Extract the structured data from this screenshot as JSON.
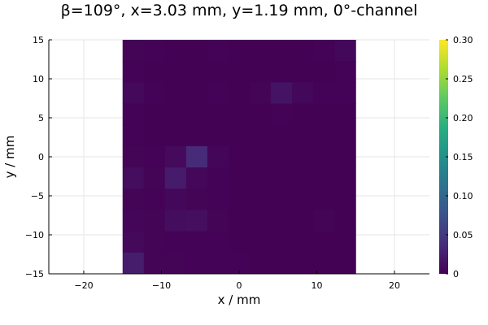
{
  "chart_data": {
    "type": "heatmap",
    "title": "β=109°, x=3.03 mm, y=1.19 mm, 0°-channel",
    "xlabel": "x / mm",
    "ylabel": "y / mm",
    "xlim": [
      -24.5,
      24.5
    ],
    "ylim": [
      -15,
      15
    ],
    "xticks": [
      -20,
      -10,
      0,
      10,
      20
    ],
    "xtick_labels": [
      "−20",
      "−10",
      "0",
      "10",
      "20"
    ],
    "yticks": [
      -15,
      -10,
      -5,
      0,
      5,
      10,
      15
    ],
    "ytick_labels": [
      "−15",
      "−10",
      "−5",
      "0",
      "5",
      "10",
      "15"
    ],
    "grid": true,
    "colormap": "viridis",
    "colorbar": {
      "range": [
        0,
        0.3
      ],
      "ticks": [
        0,
        0.05,
        0.1,
        0.15,
        0.2,
        0.25,
        0.3
      ],
      "tick_labels": [
        "0",
        "0.05",
        "0.10",
        "0.15",
        "0.20",
        "0.25",
        "0.30"
      ]
    },
    "x_range": [
      -15,
      15
    ],
    "y_range": [
      -15,
      15
    ],
    "grid_size": [
      11,
      11
    ],
    "values": [
      [
        0.003,
        0.002,
        0.001,
        0.001,
        0.002,
        0.001,
        0.001,
        0.001,
        0.001,
        0.002,
        0.006
      ],
      [
        0.002,
        0.001,
        0.001,
        0.001,
        0.001,
        0.001,
        0.001,
        0.001,
        0.001,
        0.001,
        0.002
      ],
      [
        0.007,
        0.002,
        0.001,
        0.001,
        0.002,
        0.001,
        0.003,
        0.015,
        0.006,
        0.002,
        0.002
      ],
      [
        0.002,
        0.001,
        0.001,
        0.001,
        0.001,
        0.001,
        0.001,
        0.002,
        0.001,
        0.001,
        0.001
      ],
      [
        0.002,
        0.001,
        0.001,
        0.001,
        0.001,
        0.001,
        0.001,
        0.001,
        0.001,
        0.001,
        0.001
      ],
      [
        0.003,
        0.002,
        0.008,
        0.035,
        0.004,
        0.001,
        0.001,
        0.001,
        0.001,
        0.001,
        0.001
      ],
      [
        0.01,
        0.003,
        0.022,
        0.005,
        0.002,
        0.001,
        0.001,
        0.001,
        0.001,
        0.001,
        0.001
      ],
      [
        0.003,
        0.002,
        0.006,
        0.003,
        0.002,
        0.001,
        0.001,
        0.001,
        0.001,
        0.001,
        0.001
      ],
      [
        0.004,
        0.003,
        0.01,
        0.011,
        0.003,
        0.001,
        0.001,
        0.001,
        0.001,
        0.003,
        0.001
      ],
      [
        0.007,
        0.003,
        0.002,
        0.002,
        0.002,
        0.001,
        0.001,
        0.001,
        0.001,
        0.001,
        0.001
      ],
      [
        0.024,
        0.003,
        0.003,
        0.002,
        0.002,
        0.002,
        0.001,
        0.001,
        0.001,
        0.001,
        0.001
      ]
    ]
  }
}
